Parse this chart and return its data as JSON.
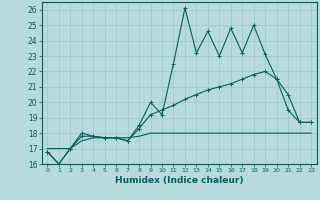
{
  "xlabel": "Humidex (Indice chaleur)",
  "xlim": [
    -0.5,
    23.5
  ],
  "ylim": [
    16,
    26.5
  ],
  "yticks": [
    16,
    17,
    18,
    19,
    20,
    21,
    22,
    23,
    24,
    25,
    26
  ],
  "xticks": [
    0,
    1,
    2,
    3,
    4,
    5,
    6,
    7,
    8,
    9,
    10,
    11,
    12,
    13,
    14,
    15,
    16,
    17,
    18,
    19,
    20,
    21,
    22,
    23
  ],
  "bg_color": "#b8dada",
  "grid_color": "#9bc8c8",
  "line_color": "#006060",
  "series1_x": [
    0,
    1,
    2,
    3,
    4,
    5,
    6,
    7,
    8,
    9,
    10,
    11,
    12,
    13,
    14,
    15,
    16,
    17,
    18,
    19,
    20,
    21,
    22,
    23
  ],
  "series1_y": [
    16.8,
    16.0,
    17.0,
    18.0,
    17.8,
    17.7,
    17.7,
    17.5,
    18.5,
    20.0,
    19.2,
    22.5,
    26.1,
    23.2,
    24.6,
    23.0,
    24.8,
    23.2,
    25.0,
    23.1,
    21.5,
    20.5,
    18.7,
    18.7
  ],
  "series2_x": [
    0,
    1,
    2,
    3,
    4,
    5,
    6,
    7,
    8,
    9,
    10,
    11,
    12,
    13,
    14,
    15,
    16,
    17,
    18,
    19,
    20,
    21,
    22,
    23
  ],
  "series2_y": [
    16.8,
    16.0,
    17.0,
    17.8,
    17.8,
    17.7,
    17.7,
    17.5,
    18.3,
    19.2,
    19.5,
    19.8,
    20.2,
    20.5,
    20.8,
    21.0,
    21.2,
    21.5,
    21.8,
    22.0,
    21.5,
    19.5,
    18.7,
    18.7
  ],
  "series3_x": [
    0,
    1,
    2,
    3,
    4,
    5,
    6,
    7,
    8,
    9,
    10,
    11,
    12,
    13,
    14,
    15,
    16,
    17,
    18,
    19,
    20,
    21,
    22,
    23
  ],
  "series3_y": [
    17.0,
    17.0,
    17.0,
    17.5,
    17.7,
    17.7,
    17.7,
    17.7,
    17.8,
    18.0,
    18.0,
    18.0,
    18.0,
    18.0,
    18.0,
    18.0,
    18.0,
    18.0,
    18.0,
    18.0,
    18.0,
    18.0,
    18.0,
    18.0
  ]
}
